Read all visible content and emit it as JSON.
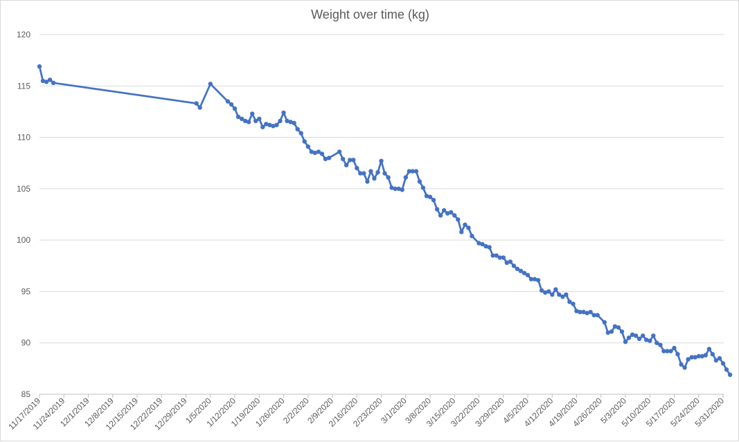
{
  "chart_data": {
    "type": "line",
    "title": "Weight over time (kg)",
    "xlabel": "",
    "ylabel": "",
    "ylim": [
      85,
      120
    ],
    "yticks": [
      85,
      90,
      95,
      100,
      105,
      110,
      115,
      120
    ],
    "x_tick_labels": [
      "11/17/2019",
      "11/24/2019",
      "12/1/2019",
      "12/8/2019",
      "12/15/2019",
      "12/22/2019",
      "12/29/2019",
      "1/5/2020",
      "1/12/2020",
      "1/19/2020",
      "1/26/2020",
      "2/2/2020",
      "2/9/2020",
      "2/16/2020",
      "2/23/2020",
      "3/1/2020",
      "3/8/2020",
      "3/15/2020",
      "3/22/2020",
      "3/29/2020",
      "4/5/2020",
      "4/12/2020",
      "4/19/2020",
      "4/26/2020",
      "5/3/2020",
      "5/10/2020",
      "5/17/2020",
      "5/24/2020",
      "5/31/2020"
    ],
    "xlim": [
      "2019-11-17",
      "2020-05-31"
    ],
    "grid": true,
    "line_color": "#4472c4",
    "series": [
      {
        "name": "",
        "points": [
          [
            "2019-11-17",
            116.9
          ],
          [
            "2019-11-18",
            115.5
          ],
          [
            "2019-11-19",
            115.4
          ],
          [
            "2019-11-20",
            115.6
          ],
          [
            "2019-11-21",
            115.3
          ],
          [
            "2020-01-01",
            113.3
          ],
          [
            "2020-01-02",
            112.9
          ],
          [
            "2020-01-05",
            115.2
          ],
          [
            "2020-01-10",
            113.5
          ],
          [
            "2020-01-11",
            113.2
          ],
          [
            "2020-01-12",
            112.8
          ],
          [
            "2020-01-13",
            112.0
          ],
          [
            "2020-01-14",
            111.8
          ],
          [
            "2020-01-15",
            111.6
          ],
          [
            "2020-01-16",
            111.5
          ],
          [
            "2020-01-17",
            112.3
          ],
          [
            "2020-01-18",
            111.6
          ],
          [
            "2020-01-19",
            111.8
          ],
          [
            "2020-01-20",
            111.0
          ],
          [
            "2020-01-21",
            111.3
          ],
          [
            "2020-01-22",
            111.2
          ],
          [
            "2020-01-23",
            111.1
          ],
          [
            "2020-01-24",
            111.2
          ],
          [
            "2020-01-25",
            111.6
          ],
          [
            "2020-01-26",
            112.4
          ],
          [
            "2020-01-27",
            111.6
          ],
          [
            "2020-01-28",
            111.5
          ],
          [
            "2020-01-29",
            111.4
          ],
          [
            "2020-01-30",
            110.8
          ],
          [
            "2020-01-31",
            110.4
          ],
          [
            "2020-02-01",
            109.6
          ],
          [
            "2020-02-02",
            109.1
          ],
          [
            "2020-02-03",
            108.6
          ],
          [
            "2020-02-04",
            108.5
          ],
          [
            "2020-02-05",
            108.6
          ],
          [
            "2020-02-06",
            108.4
          ],
          [
            "2020-02-07",
            107.9
          ],
          [
            "2020-02-08",
            108.0
          ],
          [
            "2020-02-11",
            108.6
          ],
          [
            "2020-02-12",
            107.9
          ],
          [
            "2020-02-13",
            107.3
          ],
          [
            "2020-02-14",
            107.8
          ],
          [
            "2020-02-15",
            107.8
          ],
          [
            "2020-02-16",
            107.0
          ],
          [
            "2020-02-17",
            106.5
          ],
          [
            "2020-02-18",
            106.5
          ],
          [
            "2020-02-19",
            105.7
          ],
          [
            "2020-02-20",
            106.7
          ],
          [
            "2020-02-21",
            106.0
          ],
          [
            "2020-02-22",
            106.6
          ],
          [
            "2020-02-23",
            107.7
          ],
          [
            "2020-02-24",
            106.5
          ],
          [
            "2020-02-25",
            106.1
          ],
          [
            "2020-02-26",
            105.1
          ],
          [
            "2020-02-27",
            105.0
          ],
          [
            "2020-02-28",
            105.0
          ],
          [
            "2020-02-29",
            104.9
          ],
          [
            "2020-03-01",
            106.1
          ],
          [
            "2020-03-02",
            106.7
          ],
          [
            "2020-03-03",
            106.7
          ],
          [
            "2020-03-04",
            106.7
          ],
          [
            "2020-03-05",
            105.7
          ],
          [
            "2020-03-06",
            105.1
          ],
          [
            "2020-03-07",
            104.3
          ],
          [
            "2020-03-08",
            104.2
          ],
          [
            "2020-03-09",
            103.9
          ],
          [
            "2020-03-10",
            103.0
          ],
          [
            "2020-03-11",
            102.4
          ],
          [
            "2020-03-12",
            102.9
          ],
          [
            "2020-03-13",
            102.6
          ],
          [
            "2020-03-14",
            102.7
          ],
          [
            "2020-03-15",
            102.4
          ],
          [
            "2020-03-16",
            102.0
          ],
          [
            "2020-03-17",
            100.8
          ],
          [
            "2020-03-18",
            101.5
          ],
          [
            "2020-03-19",
            101.2
          ],
          [
            "2020-03-20",
            100.4
          ],
          [
            "2020-03-22",
            99.7
          ],
          [
            "2020-03-23",
            99.6
          ],
          [
            "2020-03-24",
            99.4
          ],
          [
            "2020-03-25",
            99.3
          ],
          [
            "2020-03-26",
            98.5
          ],
          [
            "2020-03-27",
            98.5
          ],
          [
            "2020-03-28",
            98.3
          ],
          [
            "2020-03-29",
            98.3
          ],
          [
            "2020-03-30",
            97.8
          ],
          [
            "2020-03-31",
            97.9
          ],
          [
            "2020-04-01",
            97.5
          ],
          [
            "2020-04-02",
            97.2
          ],
          [
            "2020-04-03",
            97.0
          ],
          [
            "2020-04-04",
            96.8
          ],
          [
            "2020-04-05",
            96.6
          ],
          [
            "2020-04-06",
            96.2
          ],
          [
            "2020-04-07",
            96.2
          ],
          [
            "2020-04-08",
            96.1
          ],
          [
            "2020-04-09",
            95.1
          ],
          [
            "2020-04-10",
            94.9
          ],
          [
            "2020-04-11",
            95.0
          ],
          [
            "2020-04-12",
            94.7
          ],
          [
            "2020-04-13",
            95.2
          ],
          [
            "2020-04-14",
            94.7
          ],
          [
            "2020-04-15",
            94.5
          ],
          [
            "2020-04-16",
            94.7
          ],
          [
            "2020-04-17",
            94.0
          ],
          [
            "2020-04-18",
            93.8
          ],
          [
            "2020-04-19",
            93.1
          ],
          [
            "2020-04-20",
            93.0
          ],
          [
            "2020-04-21",
            93.0
          ],
          [
            "2020-04-22",
            92.9
          ],
          [
            "2020-04-23",
            93.0
          ],
          [
            "2020-04-24",
            92.7
          ],
          [
            "2020-04-25",
            92.7
          ],
          [
            "2020-04-27",
            92.0
          ],
          [
            "2020-04-28",
            91.0
          ],
          [
            "2020-04-29",
            91.1
          ],
          [
            "2020-04-30",
            91.6
          ],
          [
            "2020-05-01",
            91.5
          ],
          [
            "2020-05-02",
            91.1
          ],
          [
            "2020-05-03",
            90.1
          ],
          [
            "2020-05-04",
            90.5
          ],
          [
            "2020-05-05",
            90.8
          ],
          [
            "2020-05-06",
            90.7
          ],
          [
            "2020-05-07",
            90.4
          ],
          [
            "2020-05-08",
            90.7
          ],
          [
            "2020-05-09",
            90.3
          ],
          [
            "2020-05-10",
            90.2
          ],
          [
            "2020-05-11",
            90.7
          ],
          [
            "2020-05-12",
            90.0
          ],
          [
            "2020-05-13",
            89.8
          ],
          [
            "2020-05-14",
            89.2
          ],
          [
            "2020-05-15",
            89.2
          ],
          [
            "2020-05-16",
            89.2
          ],
          [
            "2020-05-17",
            89.5
          ],
          [
            "2020-05-18",
            88.9
          ],
          [
            "2020-05-19",
            87.9
          ],
          [
            "2020-05-20",
            87.6
          ],
          [
            "2020-05-21",
            88.4
          ],
          [
            "2020-05-22",
            88.6
          ],
          [
            "2020-05-23",
            88.6
          ],
          [
            "2020-05-24",
            88.7
          ],
          [
            "2020-05-25",
            88.7
          ],
          [
            "2020-05-26",
            88.8
          ],
          [
            "2020-05-27",
            89.4
          ],
          [
            "2020-05-28",
            88.9
          ],
          [
            "2020-05-29",
            88.3
          ],
          [
            "2020-05-30",
            88.5
          ],
          [
            "2020-05-31",
            88.0
          ],
          [
            "2020-06-01",
            87.4
          ],
          [
            "2020-06-02",
            86.9
          ]
        ]
      }
    ]
  }
}
